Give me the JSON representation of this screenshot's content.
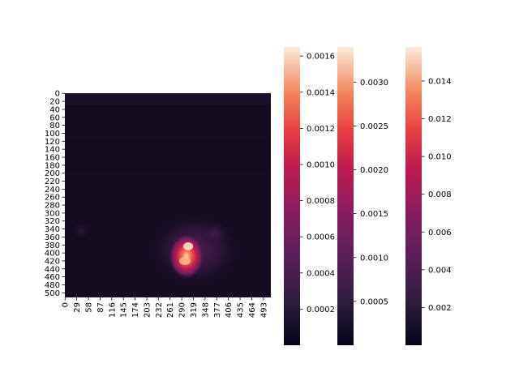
{
  "chart_data": [
    {
      "type": "heatmap",
      "title": "",
      "xlabel": "",
      "ylabel": "",
      "grid": false,
      "rows": 512,
      "cols": 512,
      "x_tick_labels": [
        "0",
        "29",
        "58",
        "87",
        "116",
        "145",
        "174",
        "203",
        "232",
        "261",
        "290",
        "319",
        "348",
        "377",
        "406",
        "435",
        "464",
        "493"
      ],
      "y_tick_labels": [
        "0",
        "20",
        "40",
        "60",
        "80",
        "100",
        "120",
        "140",
        "160",
        "180",
        "200",
        "220",
        "240",
        "260",
        "280",
        "300",
        "320",
        "340",
        "360",
        "380",
        "400",
        "420",
        "440",
        "460",
        "480",
        "500"
      ],
      "hotspot": {
        "description": "bright blob",
        "center_col": 305,
        "center_row": 410,
        "peak_value": 0.00165
      },
      "background_value": 2e-05
    }
  ],
  "colorbars": [
    {
      "range": [
        0.0,
        0.00165
      ],
      "tick_labels": [
        "0.0002",
        "0.0004",
        "0.0006",
        "0.0008",
        "0.0010",
        "0.0012",
        "0.0014",
        "0.0016"
      ],
      "tick_values": [
        0.0002,
        0.0004,
        0.0006,
        0.0008,
        0.001,
        0.0012,
        0.0014,
        0.0016
      ]
    },
    {
      "range": [
        0.0,
        0.0034
      ],
      "tick_labels": [
        "0.0005",
        "0.0010",
        "0.0015",
        "0.0020",
        "0.0025",
        "0.0030"
      ],
      "tick_values": [
        0.0005,
        0.001,
        0.0015,
        0.002,
        0.0025,
        0.003
      ]
    },
    {
      "range": [
        0.0,
        0.0158
      ],
      "tick_labels": [
        "0.002",
        "0.004",
        "0.006",
        "0.008",
        "0.010",
        "0.012",
        "0.014"
      ],
      "tick_values": [
        0.002,
        0.004,
        0.006,
        0.008,
        0.01,
        0.012,
        0.014
      ]
    }
  ],
  "colormap": "rocket"
}
